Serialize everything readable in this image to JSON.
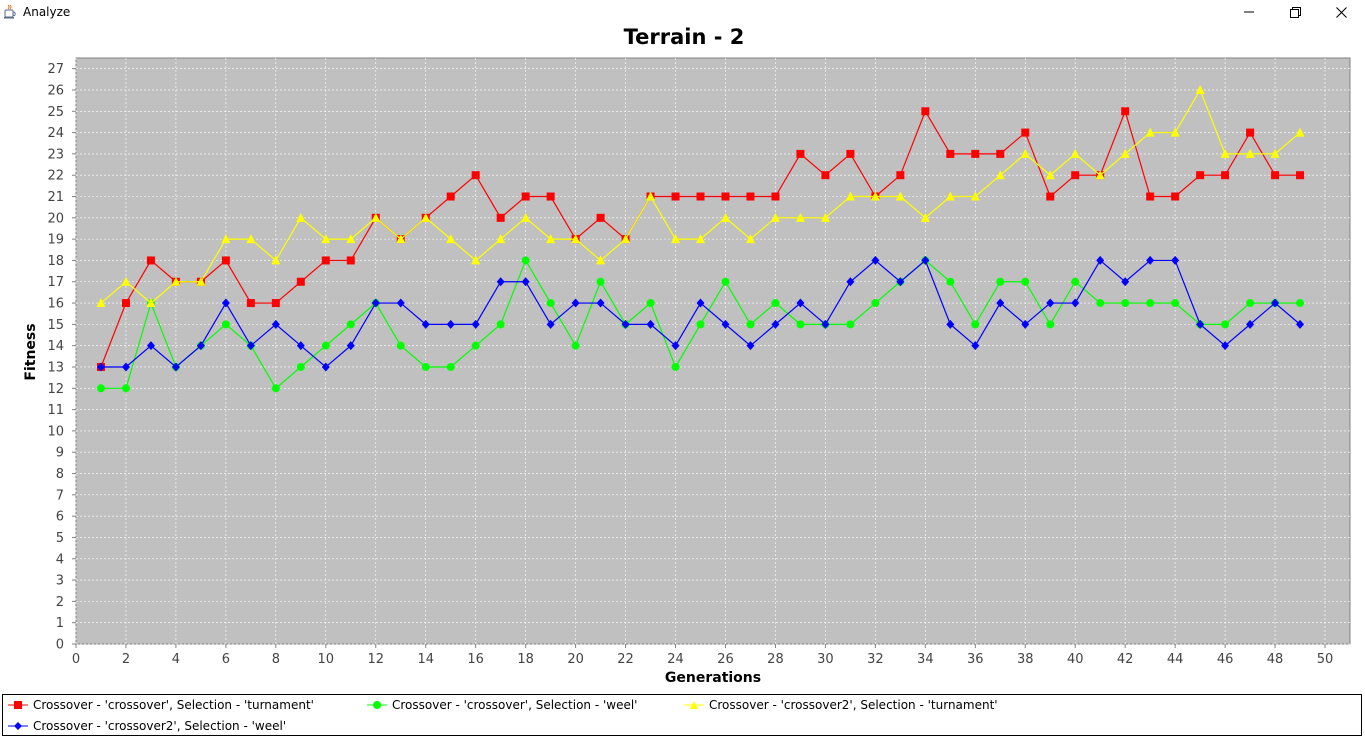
{
  "window": {
    "title": "Analyze",
    "app_icon": "java-cup-icon",
    "controls": {
      "minimize": "minimize-icon",
      "maximize": "restore-icon",
      "close": "close-icon"
    }
  },
  "chart_data": {
    "type": "line",
    "title": "Terrain - 2",
    "xlabel": "Generations",
    "ylabel": "Fitness",
    "xlim": [
      0,
      51
    ],
    "ylim": [
      0,
      27.5
    ],
    "xticks": [
      0,
      2,
      4,
      6,
      8,
      10,
      12,
      14,
      16,
      18,
      20,
      22,
      24,
      26,
      28,
      30,
      32,
      34,
      36,
      38,
      40,
      42,
      44,
      46,
      48,
      50
    ],
    "yticks": [
      0,
      1,
      2,
      3,
      4,
      5,
      6,
      7,
      8,
      9,
      10,
      11,
      12,
      13,
      14,
      15,
      16,
      17,
      18,
      19,
      20,
      21,
      22,
      23,
      24,
      25,
      26,
      27
    ],
    "grid": true,
    "plot_background": "#c0c0c0",
    "legend_position": "bottom",
    "x": [
      1,
      2,
      3,
      4,
      5,
      6,
      7,
      8,
      9,
      10,
      11,
      12,
      13,
      14,
      15,
      16,
      17,
      18,
      19,
      20,
      21,
      22,
      23,
      24,
      25,
      26,
      27,
      28,
      29,
      30,
      31,
      32,
      33,
      34,
      35,
      36,
      37,
      38,
      39,
      40,
      41,
      42,
      43,
      44,
      45,
      46,
      47,
      48,
      49
    ],
    "series": [
      {
        "name": "Crossover - 'crossover', Selection - 'turnament'",
        "color": "#ff0000",
        "marker": "square",
        "values": [
          13,
          16,
          18,
          17,
          17,
          18,
          16,
          16,
          17,
          18,
          18,
          20,
          19,
          20,
          21,
          22,
          20,
          21,
          21,
          19,
          20,
          19,
          21,
          21,
          21,
          21,
          21,
          21,
          23,
          22,
          23,
          21,
          22,
          25,
          23,
          23,
          23,
          24,
          21,
          22,
          22,
          25,
          21,
          21,
          22,
          22,
          24,
          22,
          22
        ]
      },
      {
        "name": "Crossover - 'crossover', Selection - 'weel'",
        "color": "#00ff00",
        "marker": "circle",
        "values": [
          12,
          12,
          16,
          13,
          14,
          15,
          14,
          12,
          13,
          14,
          15,
          16,
          14,
          13,
          13,
          14,
          15,
          18,
          16,
          14,
          17,
          15,
          16,
          13,
          15,
          17,
          15,
          16,
          15,
          15,
          15,
          16,
          17,
          18,
          17,
          15,
          17,
          17,
          15,
          17,
          16,
          16,
          16,
          16,
          15,
          15,
          16,
          16,
          16
        ]
      },
      {
        "name": "Crossover - 'crossover2', Selection - 'turnament'",
        "color": "#ffff00",
        "marker": "triangle",
        "values": [
          16,
          17,
          16,
          17,
          17,
          19,
          19,
          18,
          20,
          19,
          19,
          20,
          19,
          20,
          19,
          18,
          19,
          20,
          19,
          19,
          18,
          19,
          21,
          19,
          19,
          20,
          19,
          20,
          20,
          20,
          21,
          21,
          21,
          20,
          21,
          21,
          22,
          23,
          22,
          23,
          22,
          23,
          24,
          24,
          26,
          23,
          23,
          23,
          24
        ]
      },
      {
        "name": "Crossover - 'crossover2', Selection - 'weel'",
        "color": "#0000ff",
        "marker": "diamond",
        "values": [
          13,
          13,
          14,
          13,
          14,
          16,
          14,
          15,
          14,
          13,
          14,
          16,
          16,
          15,
          15,
          15,
          17,
          17,
          15,
          16,
          16,
          15,
          15,
          14,
          16,
          15,
          14,
          15,
          16,
          15,
          17,
          18,
          17,
          18,
          15,
          14,
          16,
          15,
          16,
          16,
          18,
          17,
          18,
          18,
          15,
          14,
          15,
          16,
          15
        ]
      }
    ]
  }
}
